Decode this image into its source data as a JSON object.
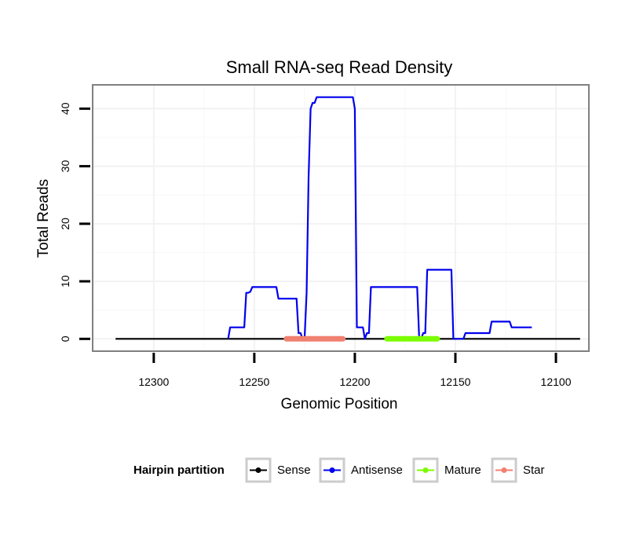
{
  "chart_data": {
    "type": "line",
    "title": "Small RNA-seq Read Density",
    "xlabel": "Genomic Position",
    "ylabel": "Total Reads",
    "x_reversed": true,
    "xlim": [
      12330,
      12084
    ],
    "ylim": [
      -2,
      44
    ],
    "x_ticks": [
      12300,
      12250,
      12200,
      12150,
      12100
    ],
    "y_ticks": [
      0,
      10,
      20,
      30,
      40
    ],
    "grid": true,
    "legend": {
      "title": "Hairpin partition",
      "position": "bottom",
      "items": [
        {
          "name": "Sense",
          "color": "#000000"
        },
        {
          "name": "Antisense",
          "color": "#0000ee"
        },
        {
          "name": "Mature",
          "color": "#7cfc00"
        },
        {
          "name": "Star",
          "color": "#f08070"
        }
      ]
    },
    "series": [
      {
        "name": "Sense",
        "color": "#000000",
        "points": [
          [
            12319,
            0
          ],
          [
            12088,
            0
          ]
        ]
      },
      {
        "name": "Antisense",
        "color": "#0000ee",
        "points": [
          [
            12263,
            0
          ],
          [
            12262,
            2
          ],
          [
            12255,
            2
          ],
          [
            12254,
            8
          ],
          [
            12253,
            8
          ],
          [
            12252,
            8.2
          ],
          [
            12251,
            9
          ],
          [
            12239,
            9
          ],
          [
            12238,
            7
          ],
          [
            12229,
            7
          ],
          [
            12228,
            1
          ],
          [
            12227,
            1
          ],
          [
            12226,
            0
          ],
          [
            12225,
            0
          ],
          [
            12224,
            8
          ],
          [
            12223,
            28
          ],
          [
            12222,
            40
          ],
          [
            12221,
            41
          ],
          [
            12220,
            41
          ],
          [
            12219,
            42
          ],
          [
            12201,
            42
          ],
          [
            12200,
            40
          ],
          [
            12199,
            2
          ],
          [
            12196,
            2
          ],
          [
            12195,
            0
          ],
          [
            12194,
            1
          ],
          [
            12193,
            1
          ],
          [
            12192,
            9
          ],
          [
            12169,
            9
          ],
          [
            12168,
            0
          ],
          [
            12167,
            0
          ],
          [
            12166,
            1
          ],
          [
            12165,
            1
          ],
          [
            12164,
            12
          ],
          [
            12152,
            12
          ],
          [
            12151,
            0
          ],
          [
            12146,
            0
          ],
          [
            12145,
            1
          ],
          [
            12133,
            1
          ],
          [
            12132,
            3
          ],
          [
            12123,
            3
          ],
          [
            12122,
            2
          ],
          [
            12112,
            2
          ]
        ]
      },
      {
        "name": "Star",
        "color": "#f08070",
        "points": [
          [
            12234,
            0
          ],
          [
            12206,
            0
          ]
        ]
      },
      {
        "name": "Mature",
        "color": "#7cfc00",
        "points": [
          [
            12184,
            0
          ],
          [
            12159,
            0
          ]
        ]
      }
    ]
  }
}
